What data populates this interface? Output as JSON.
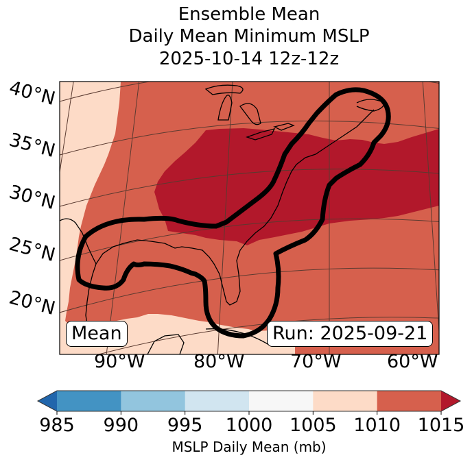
{
  "title": {
    "line1": "Ensemble Mean",
    "line2": "Daily Mean Minimum MSLP",
    "line3": "2025-10-14 12z-12z"
  },
  "map": {
    "projection": "lambert-conformal",
    "lat_labels": [
      "40°N",
      "35°N",
      "30°N",
      "25°N",
      "20°N"
    ],
    "lon_labels": [
      "90°W",
      "80°W",
      "70°W",
      "60°W"
    ],
    "annotation_left": "Mean",
    "annotation_right": "Run: 2025-09-21",
    "fill_colors": {
      "1005-1010": "#fddbc7",
      "1010-1015": "#d6604d",
      ">1015": "#b2182b"
    },
    "contour_color": "#000000",
    "coastline_color": "#000000",
    "gridline_color": "#5a3a30"
  },
  "colorbar": {
    "label": "MSLP Daily Mean (mb)",
    "ticks": [
      "985",
      "990",
      "995",
      "1000",
      "1005",
      "1010",
      "1015"
    ],
    "bins": [
      {
        "range": "985-990",
        "color": "#4393c3"
      },
      {
        "range": "990-995",
        "color": "#92c5de"
      },
      {
        "range": "995-1000",
        "color": "#d1e5f0"
      },
      {
        "range": "1000-1005",
        "color": "#f7f7f7"
      },
      {
        "range": "1005-1010",
        "color": "#fddbc7"
      },
      {
        "range": "1010-1015",
        "color": "#d6604d"
      }
    ],
    "extend_low_color": "#2166ac",
    "extend_high_color": "#b2182b",
    "extend": "both"
  }
}
